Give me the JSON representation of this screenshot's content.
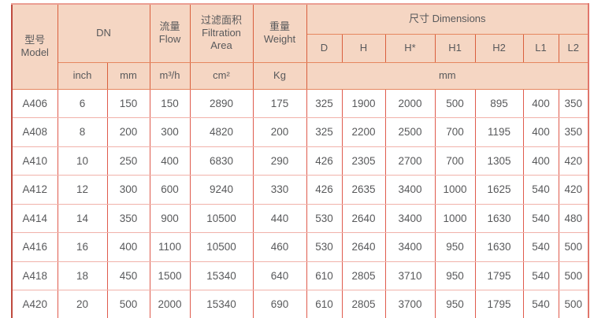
{
  "table": {
    "header": {
      "model_zh": "型号",
      "model_en": "Model",
      "dn": "DN",
      "flow_zh": "流量",
      "flow_en": "Flow",
      "filtration_zh": "过滤面积",
      "filtration_en": "Filtration Area",
      "weight_zh": "重量",
      "weight_en": "Weight",
      "dimensions": "尺寸 Dimensions",
      "dim_cols": [
        "D",
        "H",
        "H*",
        "H1",
        "H2",
        "L1",
        "L2"
      ],
      "unit_inch": "inch",
      "unit_mm": "mm",
      "unit_flow": "m³/h",
      "unit_area": "cm²",
      "unit_weight": "Kg",
      "unit_dims": "mm"
    },
    "rows": [
      {
        "cells": [
          "A406",
          "6",
          "150",
          "150",
          "2890",
          "175",
          "325",
          "1900",
          "2000",
          "500",
          "895",
          "400",
          "350"
        ]
      },
      {
        "cells": [
          "A408",
          "8",
          "200",
          "300",
          "4820",
          "200",
          "325",
          "2200",
          "2500",
          "700",
          "1195",
          "400",
          "350"
        ]
      },
      {
        "cells": [
          "A410",
          "10",
          "250",
          "400",
          "6830",
          "290",
          "426",
          "2305",
          "2700",
          "700",
          "1305",
          "400",
          "420"
        ]
      },
      {
        "cells": [
          "A412",
          "12",
          "300",
          "600",
          "9240",
          "330",
          "426",
          "2635",
          "3400",
          "1000",
          "1625",
          "540",
          "420"
        ]
      },
      {
        "cells": [
          "A414",
          "14",
          "350",
          "900",
          "10500",
          "440",
          "530",
          "2640",
          "3400",
          "1000",
          "1630",
          "540",
          "480"
        ]
      },
      {
        "cells": [
          "A416",
          "16",
          "400",
          "1100",
          "10500",
          "460",
          "530",
          "2640",
          "3400",
          "950",
          "1630",
          "540",
          "500"
        ]
      },
      {
        "cells": [
          "A418",
          "18",
          "450",
          "1500",
          "15340",
          "640",
          "610",
          "2805",
          "3710",
          "950",
          "1795",
          "540",
          "500"
        ]
      },
      {
        "cells": [
          "A420",
          "20",
          "500",
          "2000",
          "15340",
          "690",
          "610",
          "2805",
          "3700",
          "950",
          "1795",
          "540",
          "500"
        ]
      }
    ],
    "colors": {
      "header_bg": "#f5d6c3",
      "header_border_vertical": "#d95f3d",
      "header_border_horizontal": "#e6875f",
      "body_border_vertical": "#df5b4d",
      "body_border_horizontal": "#f1b2aa",
      "outer_frame": "#bf4a3e",
      "text": "#58595b"
    }
  }
}
